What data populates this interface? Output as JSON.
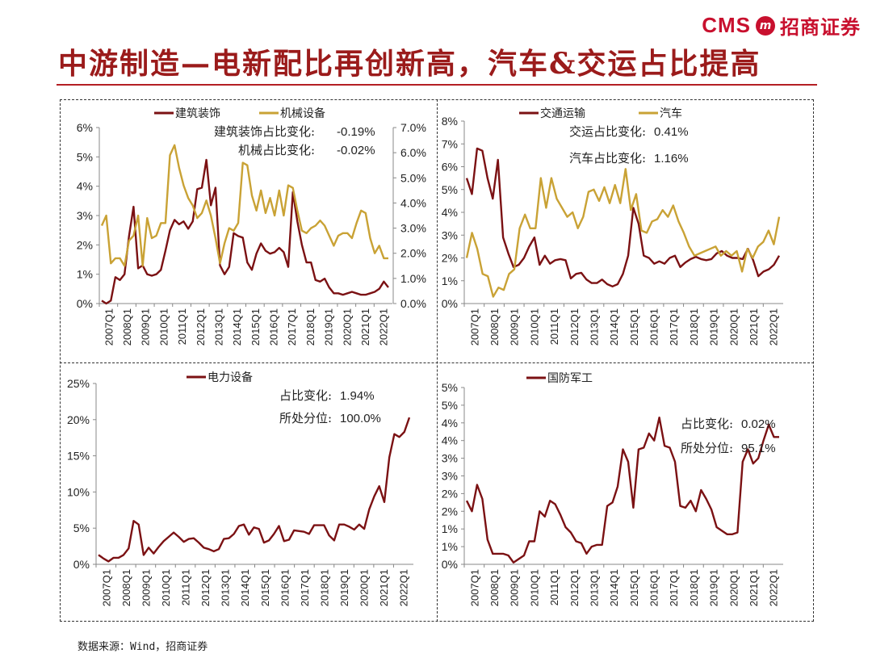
{
  "header": {
    "logo_text": "CMS",
    "logo_badge": "m",
    "logo_cn": "招商证券",
    "title": "中游制造—电新配比再创新高，汽车&交运占比提高"
  },
  "source_note": "数据来源：Wind，招商证券",
  "colors": {
    "dark_red": "#7b1113",
    "gold": "#c9a235"
  },
  "chart_data": [
    {
      "type": "line",
      "id": "chart1",
      "x_labels": [
        "2007Q1",
        "2008Q1",
        "2009Q1",
        "2010Q1",
        "2011Q1",
        "2012Q1",
        "2013Q1",
        "2014Q1",
        "2015Q1",
        "2016Q1",
        "2017Q1",
        "2018Q1",
        "2019Q1",
        "2020Q1",
        "2021Q1",
        "2022Q1"
      ],
      "left_axis": {
        "min": 0,
        "max": 6,
        "ticks": [
          "0%",
          "1%",
          "2%",
          "3%",
          "4%",
          "5%",
          "6%"
        ]
      },
      "right_axis": {
        "min": 0,
        "max": 7,
        "ticks": [
          "0.0%",
          "1.0%",
          "2.0%",
          "3.0%",
          "4.0%",
          "5.0%",
          "6.0%",
          "7.0%"
        ]
      },
      "series": [
        {
          "name": "建筑装饰",
          "axis": "left",
          "color": "#7b1113",
          "values": [
            0.1,
            0.0,
            0.1,
            0.9,
            0.8,
            1.0,
            2.3,
            3.3,
            1.2,
            1.3,
            1.0,
            0.95,
            1.0,
            1.15,
            1.8,
            2.5,
            2.85,
            2.7,
            2.8,
            2.55,
            2.8,
            3.9,
            3.95,
            4.9,
            3.35,
            3.95,
            1.3,
            1.0,
            1.25,
            2.4,
            2.3,
            2.25,
            1.4,
            1.15,
            1.7,
            2.05,
            1.8,
            1.7,
            1.75,
            1.9,
            1.75,
            1.25,
            3.8,
            2.8,
            2.0,
            1.4,
            1.4,
            0.8,
            0.75,
            0.85,
            0.55,
            0.35,
            0.35,
            0.3,
            0.35,
            0.4,
            0.35,
            0.3,
            0.3,
            0.35,
            0.4,
            0.5,
            0.75,
            0.55
          ]
        },
        {
          "name": "机械设备",
          "axis": "right",
          "color": "#c9a235",
          "values": [
            3.1,
            3.5,
            1.6,
            1.8,
            1.8,
            1.5,
            2.5,
            2.7,
            3.5,
            1.5,
            3.4,
            2.6,
            2.7,
            3.2,
            3.2,
            5.9,
            6.3,
            5.4,
            4.7,
            4.2,
            3.9,
            3.4,
            3.6,
            4.1,
            3.5,
            2.6,
            1.6,
            2.4,
            3.0,
            2.9,
            3.2,
            5.6,
            5.5,
            4.3,
            3.7,
            4.5,
            3.6,
            4.2,
            3.5,
            4.5,
            3.5,
            4.7,
            4.6,
            3.7,
            2.9,
            2.8,
            3.0,
            3.1,
            3.3,
            3.1,
            2.7,
            2.3,
            2.7,
            2.8,
            2.8,
            2.6,
            3.2,
            3.7,
            3.6,
            2.6,
            2.0,
            2.3,
            1.8,
            1.8
          ]
        }
      ],
      "legend": [
        "建筑装饰",
        "机械设备"
      ],
      "annotations": [
        {
          "label": "建筑装饰占比变化:",
          "value": "-0.19%"
        },
        {
          "label": "机械占比变化:",
          "value": "-0.02%"
        }
      ]
    },
    {
      "type": "line",
      "id": "chart2",
      "x_labels": [
        "2007Q1",
        "2008Q1",
        "2009Q1",
        "2010Q1",
        "2011Q1",
        "2012Q1",
        "2013Q1",
        "2014Q1",
        "2015Q1",
        "2016Q1",
        "2017Q1",
        "2018Q1",
        "2019Q1",
        "2020Q1",
        "2021Q1",
        "2022Q1"
      ],
      "left_axis": {
        "min": 0,
        "max": 8,
        "ticks": [
          "0%",
          "1%",
          "2%",
          "3%",
          "4%",
          "5%",
          "6%",
          "7%",
          "8%"
        ]
      },
      "series": [
        {
          "name": "交通运输",
          "axis": "left",
          "color": "#7b1113",
          "values": [
            5.5,
            4.8,
            6.8,
            6.7,
            5.5,
            4.6,
            6.3,
            2.9,
            2.2,
            1.6,
            1.7,
            2.0,
            2.5,
            2.9,
            1.7,
            2.1,
            1.75,
            1.9,
            1.95,
            1.9,
            1.1,
            1.3,
            1.35,
            1.05,
            0.9,
            0.9,
            1.05,
            0.85,
            0.75,
            0.85,
            1.3,
            2.1,
            4.2,
            3.5,
            2.1,
            2.0,
            1.75,
            1.85,
            1.75,
            2.0,
            2.1,
            1.6,
            1.8,
            1.95,
            2.05,
            1.95,
            1.9,
            1.95,
            2.2,
            2.3,
            2.1,
            2.0,
            2.0,
            1.95,
            2.4,
            1.9,
            1.2,
            1.4,
            1.5,
            1.7,
            2.1
          ]
        },
        {
          "name": "汽车",
          "axis": "left",
          "color": "#c9a235",
          "values": [
            2.0,
            3.1,
            2.4,
            1.3,
            1.2,
            0.3,
            0.7,
            0.6,
            1.3,
            1.5,
            3.3,
            3.9,
            3.3,
            3.3,
            5.5,
            4.2,
            5.5,
            4.6,
            4.2,
            3.8,
            4.0,
            3.3,
            3.8,
            4.9,
            5.0,
            4.5,
            5.1,
            4.4,
            5.2,
            4.4,
            5.9,
            4.1,
            4.8,
            3.2,
            3.1,
            3.6,
            3.7,
            4.1,
            3.8,
            4.3,
            3.6,
            3.1,
            2.5,
            2.1,
            2.2,
            2.3,
            2.4,
            2.5,
            2.1,
            2.3,
            2.1,
            2.3,
            1.4,
            2.4,
            2.0,
            2.5,
            2.7,
            3.2,
            2.6,
            3.8
          ]
        }
      ],
      "legend": [
        "交通运输",
        "汽车"
      ],
      "annotations": [
        {
          "label": "交运占比变化:",
          "value": "0.41%"
        },
        {
          "label": "汽车占比变化:",
          "value": "1.16%"
        }
      ]
    },
    {
      "type": "line",
      "id": "chart3",
      "x_labels": [
        "2007Q1",
        "2008Q1",
        "2009Q1",
        "2010Q1",
        "2011Q1",
        "2012Q1",
        "2013Q1",
        "2014Q1",
        "2015Q1",
        "2016Q1",
        "2017Q1",
        "2018Q1",
        "2019Q1",
        "2020Q1",
        "2021Q1",
        "2022Q1"
      ],
      "left_axis": {
        "min": 0,
        "max": 25,
        "ticks": [
          "0%",
          "5%",
          "10%",
          "15%",
          "20%",
          "25%"
        ]
      },
      "series": [
        {
          "name": "电力设备",
          "axis": "left",
          "color": "#7b1113",
          "values": [
            1.3,
            0.8,
            0.4,
            0.9,
            0.9,
            1.3,
            2.2,
            6.0,
            5.5,
            1.3,
            2.3,
            1.5,
            2.4,
            3.2,
            3.8,
            4.4,
            3.8,
            3.1,
            3.5,
            3.6,
            3.0,
            2.3,
            2.1,
            1.8,
            2.1,
            3.5,
            3.6,
            4.2,
            5.3,
            5.5,
            4.1,
            5.1,
            4.9,
            3.0,
            3.3,
            4.2,
            5.3,
            3.2,
            3.4,
            4.7,
            4.6,
            4.5,
            4.2,
            5.4,
            5.4,
            5.4,
            4.0,
            3.3,
            5.5,
            5.5,
            5.2,
            4.8,
            5.5,
            4.9,
            7.6,
            9.4,
            10.8,
            8.6,
            14.8,
            18.0,
            17.6,
            18.3,
            20.3
          ]
        }
      ],
      "legend": [
        "电力设备"
      ],
      "annotations": [
        {
          "label": "占比变化:",
          "value": "1.94%"
        },
        {
          "label": "所处分位:",
          "value": "100.0%"
        }
      ]
    },
    {
      "type": "line",
      "id": "chart4",
      "x_labels": [
        "2007Q1",
        "2008Q1",
        "2009Q1",
        "2010Q1",
        "2011Q1",
        "2012Q1",
        "2013Q1",
        "2014Q1",
        "2015Q1",
        "2016Q1",
        "2017Q1",
        "2018Q1",
        "2019Q1",
        "2020Q1",
        "2021Q1",
        "2022Q1"
      ],
      "left_axis": {
        "min": 0,
        "max": 5,
        "ticks": [
          "0%",
          "1%",
          "1%",
          "2%",
          "2%",
          "3%",
          "3%",
          "4%",
          "4%",
          "5%",
          "5%"
        ]
      },
      "series": [
        {
          "name": "国防军工",
          "axis": "left",
          "color": "#7b1113",
          "values": [
            1.8,
            1.5,
            2.25,
            1.85,
            0.7,
            0.3,
            0.3,
            0.3,
            0.25,
            0.05,
            0.15,
            0.25,
            0.65,
            0.65,
            1.5,
            1.35,
            1.8,
            1.7,
            1.4,
            1.05,
            0.9,
            0.65,
            0.6,
            0.3,
            0.5,
            0.55,
            0.55,
            1.65,
            1.75,
            2.2,
            3.25,
            2.9,
            1.6,
            3.25,
            3.3,
            3.7,
            3.5,
            4.15,
            3.35,
            3.3,
            2.9,
            1.65,
            1.6,
            1.8,
            1.5,
            2.1,
            1.85,
            1.55,
            1.05,
            0.95,
            0.85,
            0.85,
            0.9,
            2.9,
            3.25,
            2.85,
            3.0,
            3.5,
            3.95,
            3.6,
            3.6
          ]
        }
      ],
      "legend": [
        "国防军工"
      ],
      "annotations": [
        {
          "label": "占比变化:",
          "value": "0.02%"
        },
        {
          "label": "所处分位:",
          "value": "95.1%"
        }
      ]
    }
  ]
}
